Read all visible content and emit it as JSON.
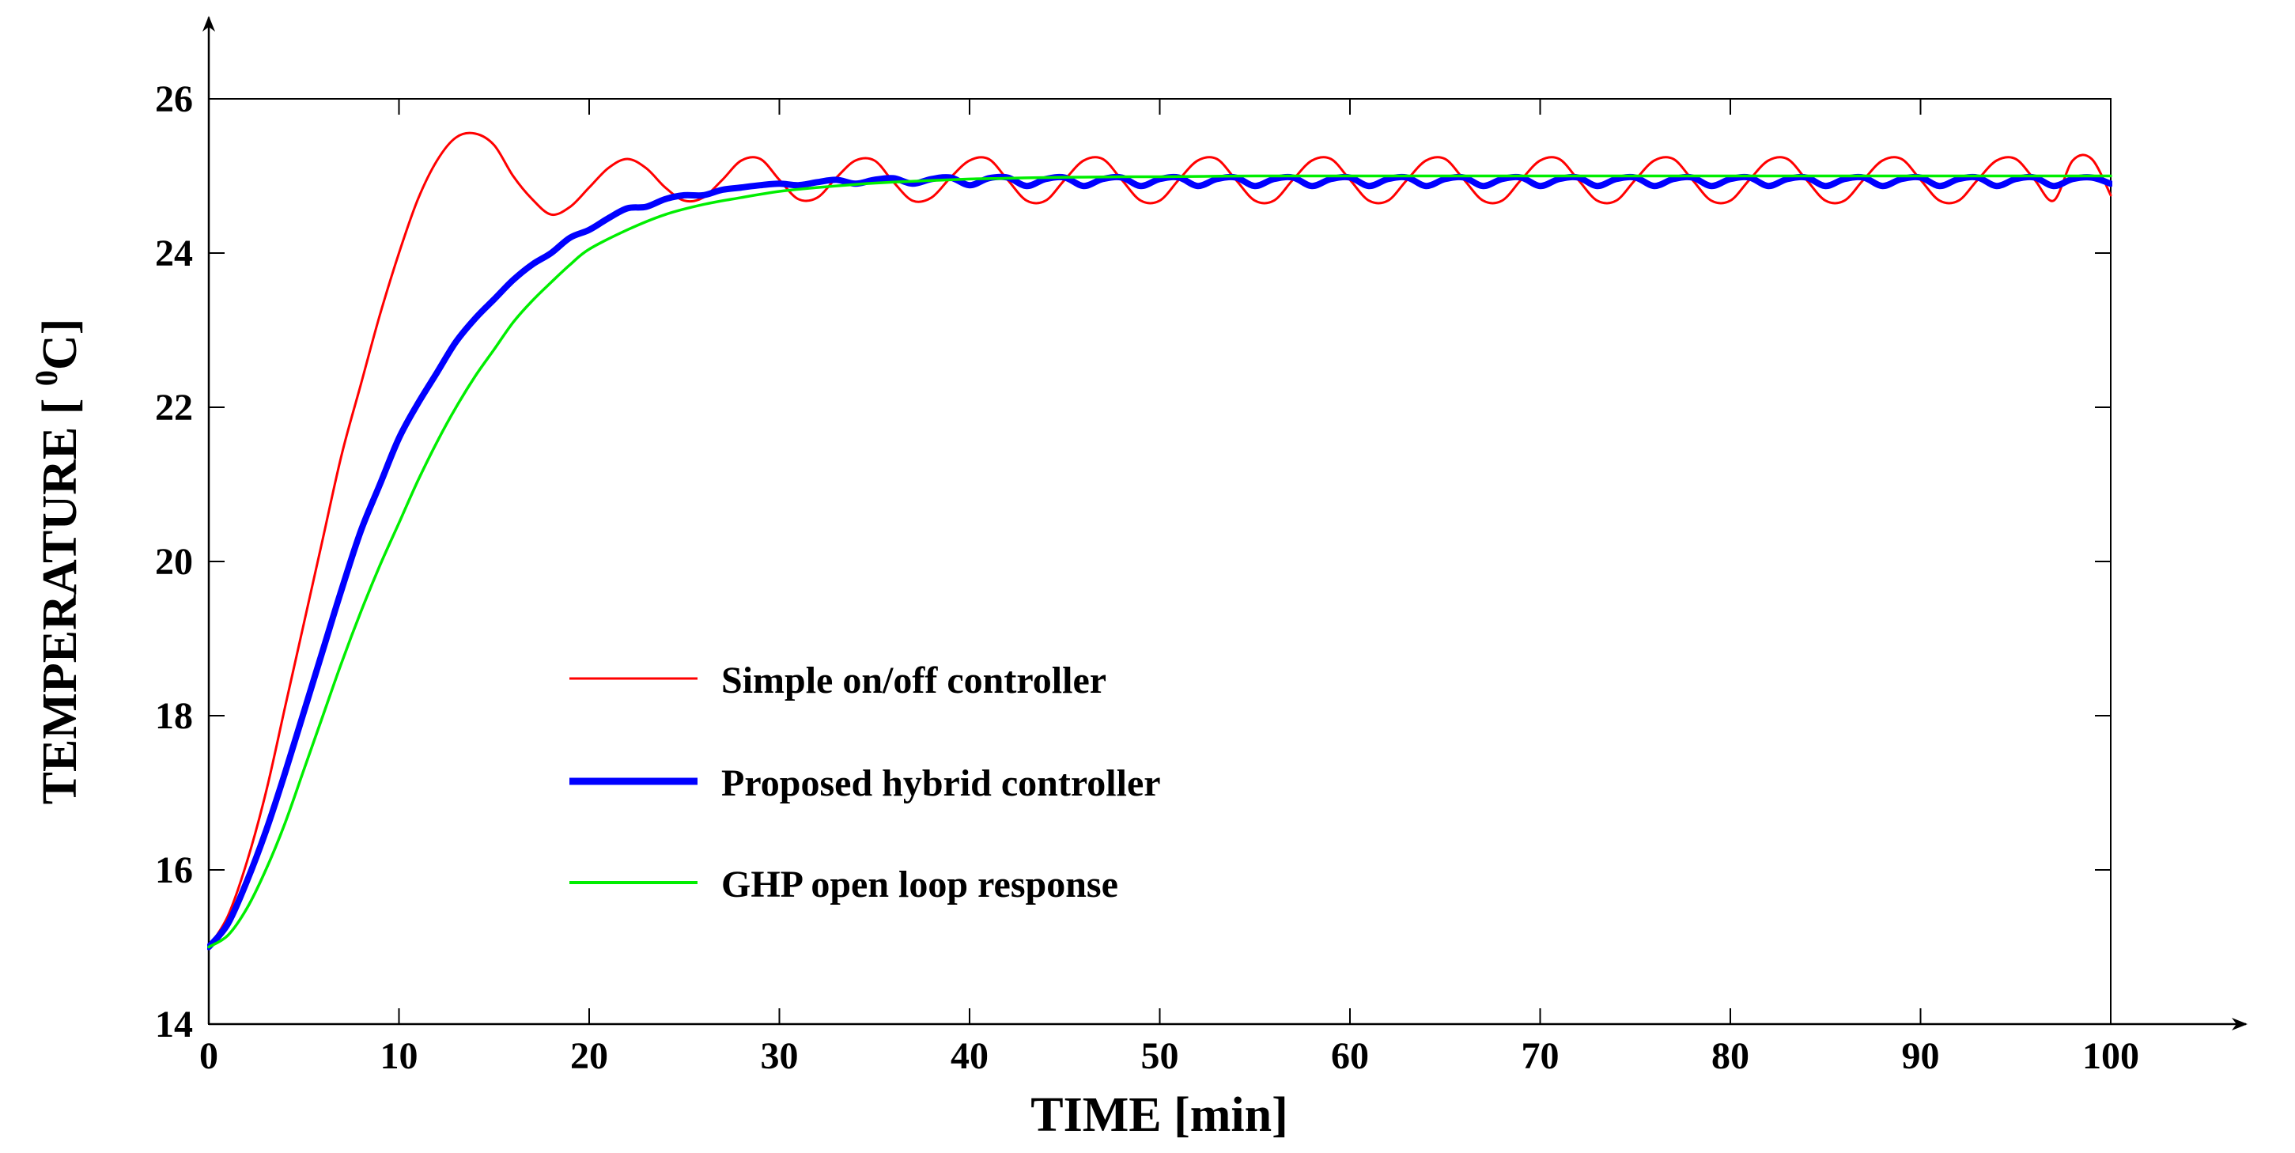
{
  "chart_data": {
    "type": "line",
    "title": "",
    "xlabel": "TIME [min]",
    "ylabel_prefix": "TEMPERATURE [ ",
    "ylabel_sup": "0",
    "ylabel_suffix": "C]",
    "xlim": [
      0,
      100
    ],
    "ylim": [
      14,
      26
    ],
    "xticks": [
      0,
      10,
      20,
      30,
      40,
      50,
      60,
      70,
      80,
      90,
      100
    ],
    "yticks": [
      14,
      16,
      18,
      20,
      22,
      24,
      26
    ],
    "grid": false,
    "legend_position": "center-left",
    "series": [
      {
        "name": "Simple on/off controller",
        "color": "#ff0000",
        "x": [
          0,
          1,
          2,
          3,
          4,
          5,
          6,
          7,
          8,
          9,
          10,
          11,
          12,
          13,
          14,
          15,
          16,
          17,
          18,
          19,
          20,
          21,
          22,
          23,
          24,
          25,
          26,
          27,
          28,
          29,
          30,
          31,
          32,
          33,
          34,
          35,
          36,
          37,
          38,
          39,
          40,
          41,
          42,
          43,
          44,
          45,
          46,
          47,
          48,
          49,
          50,
          51,
          52,
          53,
          54,
          55,
          56,
          57,
          58,
          59,
          60,
          61,
          62,
          63,
          64,
          65,
          66,
          67,
          68,
          69,
          70,
          71,
          72,
          73,
          74,
          75,
          76,
          77,
          78,
          79,
          80,
          81,
          82,
          83,
          84,
          85,
          86,
          87,
          88,
          89,
          90,
          91,
          92,
          93,
          94,
          95,
          96,
          97,
          98,
          99,
          100
        ],
        "y": [
          15.0,
          15.4,
          16.1,
          17.0,
          18.1,
          19.2,
          20.3,
          21.4,
          22.3,
          23.2,
          24.0,
          24.7,
          25.2,
          25.5,
          25.55,
          25.4,
          25.0,
          24.7,
          24.5,
          24.6,
          24.85,
          25.1,
          25.22,
          25.1,
          24.85,
          24.68,
          24.72,
          24.95,
          25.2,
          25.22,
          24.95,
          24.7,
          24.72,
          24.98,
          25.2,
          25.2,
          24.92,
          24.68,
          24.72,
          24.98,
          25.2,
          25.22,
          24.95,
          24.68,
          24.68,
          24.95,
          25.2,
          25.22,
          24.95,
          24.68,
          24.68,
          24.95,
          25.2,
          25.22,
          24.95,
          24.68,
          24.68,
          24.95,
          25.2,
          25.22,
          24.95,
          24.68,
          24.68,
          24.95,
          25.2,
          25.22,
          24.95,
          24.68,
          24.68,
          24.95,
          25.2,
          25.22,
          24.95,
          24.68,
          24.68,
          24.95,
          25.2,
          25.22,
          24.95,
          24.68,
          24.68,
          24.95,
          25.2,
          25.22,
          24.95,
          24.68,
          24.68,
          24.95,
          25.2,
          25.22,
          24.95,
          24.68,
          24.68,
          24.95,
          25.2,
          25.22,
          24.95,
          24.68,
          25.2,
          25.22,
          24.75
        ]
      },
      {
        "name": "Proposed hybrid controller",
        "color": "#0000ff",
        "x": [
          0,
          1,
          2,
          3,
          4,
          5,
          6,
          7,
          8,
          9,
          10,
          11,
          12,
          13,
          14,
          15,
          16,
          17,
          18,
          19,
          20,
          21,
          22,
          23,
          24,
          25,
          26,
          27,
          28,
          29,
          30,
          31,
          32,
          33,
          34,
          35,
          36,
          37,
          38,
          39,
          40,
          41,
          42,
          43,
          44,
          45,
          46,
          47,
          48,
          49,
          50,
          51,
          52,
          53,
          54,
          55,
          56,
          57,
          58,
          59,
          60,
          61,
          62,
          63,
          64,
          65,
          66,
          67,
          68,
          69,
          70,
          71,
          72,
          73,
          74,
          75,
          76,
          77,
          78,
          79,
          80,
          81,
          82,
          83,
          84,
          85,
          86,
          87,
          88,
          89,
          90,
          91,
          92,
          93,
          94,
          95,
          96,
          97,
          98,
          99,
          100
        ],
        "y": [
          15.0,
          15.3,
          15.85,
          16.5,
          17.25,
          18.05,
          18.85,
          19.65,
          20.4,
          21.0,
          21.6,
          22.05,
          22.45,
          22.85,
          23.15,
          23.4,
          23.65,
          23.85,
          24.0,
          24.2,
          24.3,
          24.45,
          24.58,
          24.6,
          24.7,
          24.75,
          24.75,
          24.82,
          24.85,
          24.88,
          24.9,
          24.88,
          24.92,
          24.95,
          24.9,
          24.95,
          24.97,
          24.9,
          24.96,
          24.98,
          24.88,
          24.97,
          24.98,
          24.87,
          24.96,
          24.98,
          24.87,
          24.96,
          24.98,
          24.87,
          24.96,
          24.98,
          24.87,
          24.96,
          24.98,
          24.87,
          24.96,
          24.98,
          24.87,
          24.96,
          24.98,
          24.87,
          24.96,
          24.98,
          24.87,
          24.96,
          24.98,
          24.87,
          24.96,
          24.98,
          24.87,
          24.96,
          24.98,
          24.87,
          24.96,
          24.98,
          24.87,
          24.96,
          24.98,
          24.87,
          24.96,
          24.98,
          24.87,
          24.96,
          24.98,
          24.87,
          24.96,
          24.98,
          24.87,
          24.96,
          24.98,
          24.87,
          24.96,
          24.98,
          24.87,
          24.96,
          24.98,
          24.87,
          24.96,
          24.98,
          24.9
        ]
      },
      {
        "name": "GHP open loop response",
        "color": "#00ee00",
        "x": [
          0,
          1,
          2,
          3,
          4,
          5,
          6,
          7,
          8,
          9,
          10,
          11,
          12,
          13,
          14,
          15,
          16,
          17,
          18,
          19,
          20,
          22,
          24,
          26,
          28,
          30,
          32,
          34,
          36,
          38,
          40,
          42,
          44,
          46,
          48,
          50,
          55,
          60,
          65,
          70,
          75,
          80,
          85,
          90,
          95,
          100
        ],
        "y": [
          15.0,
          15.15,
          15.5,
          16.0,
          16.6,
          17.3,
          18.0,
          18.7,
          19.35,
          19.95,
          20.5,
          21.05,
          21.55,
          22.0,
          22.4,
          22.75,
          23.1,
          23.38,
          23.62,
          23.85,
          24.05,
          24.3,
          24.5,
          24.63,
          24.72,
          24.8,
          24.85,
          24.89,
          24.92,
          24.94,
          24.96,
          24.97,
          24.98,
          24.985,
          24.99,
          24.99,
          25.0,
          25.0,
          25.0,
          25.0,
          25.0,
          25.0,
          25.0,
          25.0,
          25.0,
          25.0
        ]
      }
    ]
  }
}
